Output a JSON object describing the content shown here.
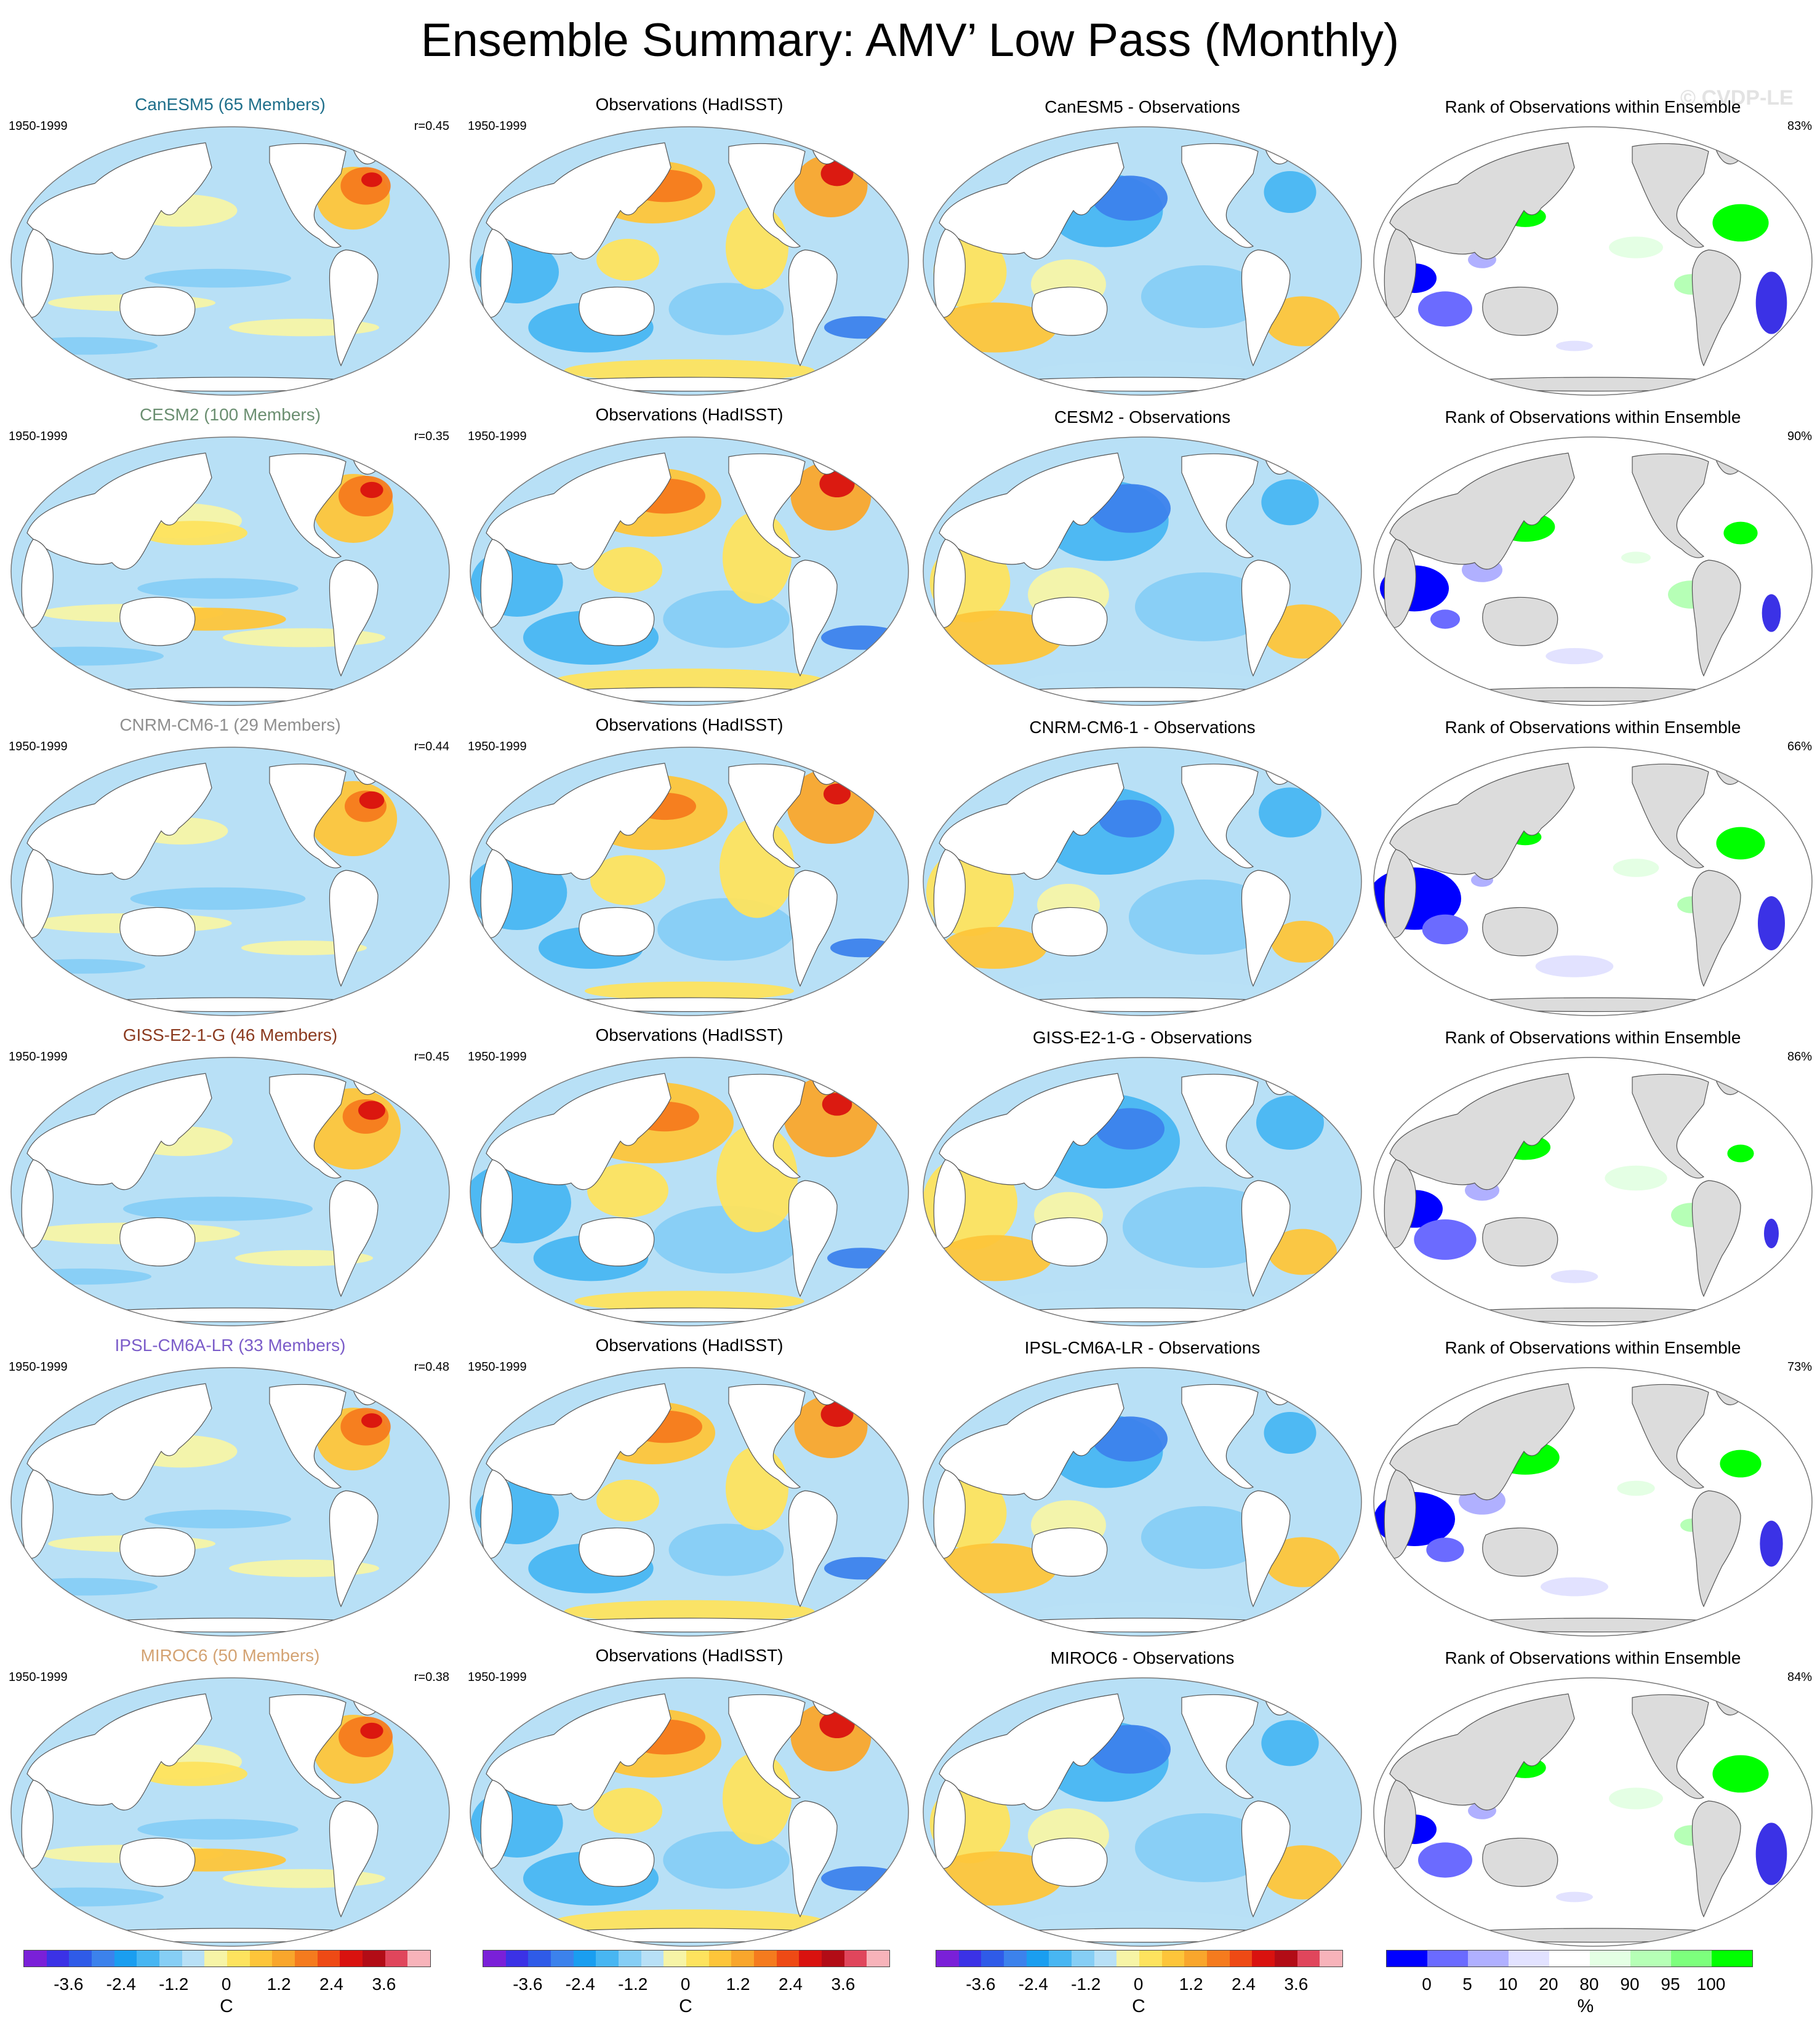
{
  "title": "Ensemble Summary: AMV’ Low Pass (Monthly)",
  "watermark": "© CVDP-LE",
  "rows": [
    {
      "model": "CanESM5 (65 Members)",
      "model_color": "#1f6f8b",
      "period": "1950-1999",
      "r": "r=0.45",
      "obs_title": "Observations (HadISST)",
      "obs_period": "1950-1999",
      "diff_title": "CanESM5 - Observations",
      "rank_title": "Rank of Observations within Ensemble",
      "rank_pct": "83%"
    },
    {
      "model": "CESM2 (100 Members)",
      "model_color": "#6b8f71",
      "period": "1950-1999",
      "r": "r=0.35",
      "obs_title": "Observations (HadISST)",
      "obs_period": "1950-1999",
      "diff_title": "CESM2 - Observations",
      "rank_title": "Rank of Observations within Ensemble",
      "rank_pct": "90%"
    },
    {
      "model": "CNRM-CM6-1 (29 Members)",
      "model_color": "#8f8f8f",
      "period": "1950-1999",
      "r": "r=0.44",
      "obs_title": "Observations (HadISST)",
      "obs_period": "1950-1999",
      "diff_title": "CNRM-CM6-1 - Observations",
      "rank_title": "Rank of Observations within Ensemble",
      "rank_pct": "66%"
    },
    {
      "model": "GISS-E2-1-G (46 Members)",
      "model_color": "#8b3a1f",
      "period": "1950-1999",
      "r": "r=0.45",
      "obs_title": "Observations (HadISST)",
      "obs_period": "1950-1999",
      "diff_title": "GISS-E2-1-G - Observations",
      "rank_title": "Rank of Observations within Ensemble",
      "rank_pct": "86%"
    },
    {
      "model": "IPSL-CM6A-LR (33 Members)",
      "model_color": "#7b5cc9",
      "period": "1950-1999",
      "r": "r=0.48",
      "obs_title": "Observations (HadISST)",
      "obs_period": "1950-1999",
      "diff_title": "IPSL-CM6A-LR - Observations",
      "rank_title": "Rank of Observations within Ensemble",
      "rank_pct": "73%"
    },
    {
      "model": "MIROC6 (50 Members)",
      "model_color": "#d4a373",
      "period": "1950-1999",
      "r": "r=0.38",
      "obs_title": "Observations (HadISST)",
      "obs_period": "1950-1999",
      "diff_title": "MIROC6 - Observations",
      "rank_title": "Rank of Observations within Ensemble",
      "rank_pct": "84%"
    }
  ],
  "colorbars": {
    "sst": {
      "colors": [
        "#7a20d8",
        "#3b32e6",
        "#2f5be8",
        "#3c82ec",
        "#1a9ef0",
        "#48b6f2",
        "#86cef5",
        "#b8e0f6",
        "#f6f4a6",
        "#fde35e",
        "#fdc53a",
        "#f9a62c",
        "#f57b1e",
        "#ee4a15",
        "#d9120f",
        "#b20c16",
        "#e0465c",
        "#f7b3ba"
      ],
      "ticks": [
        "-3.6",
        "-2.4",
        "-1.2",
        "0",
        "1.2",
        "2.4",
        "3.6"
      ],
      "unit": "C"
    },
    "rank": {
      "colors": [
        "#0000ff",
        "#6b6bff",
        "#b0b0ff",
        "#e2e2ff",
        "#ffffff",
        "#e4ffe4",
        "#b6ffb6",
        "#7dff7d",
        "#00ff00"
      ],
      "ticks": [
        "0",
        "5",
        "10",
        "20",
        "80",
        "90",
        "95",
        "100"
      ],
      "unit": "%"
    }
  }
}
